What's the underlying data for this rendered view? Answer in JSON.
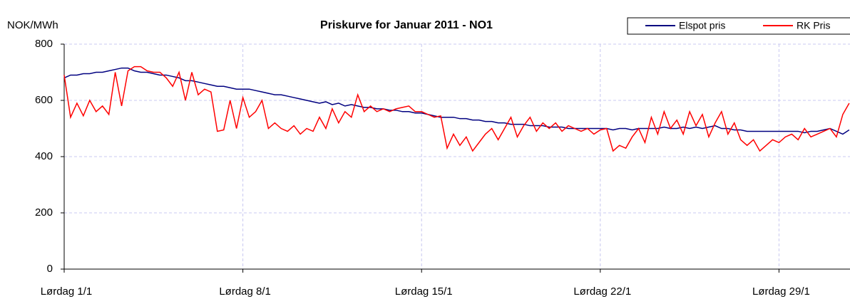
{
  "chart_data": {
    "type": "line",
    "title": "Priskurve for Januar 2011 - NO1",
    "y_label": "NOK/MWh",
    "categories": [
      "Lørdag 1/1",
      null,
      null,
      null,
      null,
      null,
      null,
      null,
      null,
      null,
      null,
      null,
      null,
      null,
      null,
      null,
      null,
      null,
      null,
      null,
      null,
      null,
      null,
      null,
      null,
      null,
      null,
      null,
      "Lørdag 8/1",
      null,
      null,
      null,
      null,
      null,
      null,
      null,
      null,
      null,
      null,
      null,
      null,
      null,
      null,
      null,
      null,
      null,
      null,
      null,
      null,
      null,
      null,
      null,
      null,
      null,
      null,
      null,
      "Lørdag 15/1",
      null,
      null,
      null,
      null,
      null,
      null,
      null,
      null,
      null,
      null,
      null,
      null,
      null,
      null,
      null,
      null,
      null,
      null,
      null,
      null,
      null,
      null,
      null,
      null,
      null,
      null,
      null,
      "Lørdag 22/1",
      null,
      null,
      null,
      null,
      null,
      null,
      null,
      null,
      null,
      null,
      null,
      null,
      null,
      null,
      null,
      null,
      null,
      null,
      null,
      null,
      null,
      null,
      null,
      null,
      null,
      null,
      null,
      "Lørdag 29/1",
      null,
      null,
      null,
      null,
      null,
      null,
      null,
      null,
      null,
      null,
      null
    ],
    "series": [
      {
        "name": "Elspot pris",
        "color": "#000080",
        "values": [
          680,
          690,
          690,
          695,
          695,
          700,
          700,
          705,
          710,
          715,
          715,
          705,
          700,
          700,
          695,
          690,
          690,
          685,
          680,
          670,
          670,
          665,
          660,
          655,
          650,
          650,
          645,
          640,
          640,
          640,
          635,
          630,
          625,
          620,
          620,
          615,
          610,
          605,
          600,
          595,
          590,
          595,
          585,
          590,
          580,
          585,
          580,
          575,
          575,
          570,
          570,
          565,
          565,
          560,
          560,
          555,
          555,
          550,
          545,
          540,
          540,
          540,
          535,
          535,
          530,
          530,
          525,
          525,
          520,
          520,
          515,
          515,
          515,
          510,
          510,
          510,
          505,
          505,
          505,
          500,
          500,
          500,
          500,
          500,
          500,
          500,
          495,
          500,
          500,
          495,
          500,
          500,
          500,
          500,
          505,
          500,
          500,
          505,
          500,
          505,
          500,
          505,
          510,
          500,
          500,
          495,
          495,
          490,
          490,
          490,
          490,
          490,
          490,
          490,
          490,
          490,
          485,
          490,
          490,
          495,
          500,
          490,
          480,
          495
        ]
      },
      {
        "name": "RK Pris",
        "color": "#ff0000",
        "values": [
          690,
          540,
          590,
          545,
          600,
          560,
          580,
          550,
          700,
          580,
          705,
          720,
          720,
          705,
          700,
          700,
          680,
          650,
          700,
          600,
          700,
          620,
          640,
          630,
          490,
          495,
          600,
          500,
          610,
          540,
          560,
          600,
          500,
          520,
          500,
          490,
          510,
          480,
          500,
          490,
          540,
          500,
          570,
          520,
          560,
          540,
          620,
          560,
          580,
          560,
          570,
          560,
          570,
          575,
          580,
          560,
          560,
          550,
          540,
          545,
          430,
          480,
          440,
          470,
          420,
          450,
          480,
          500,
          460,
          500,
          540,
          470,
          510,
          540,
          490,
          520,
          500,
          520,
          490,
          510,
          500,
          490,
          500,
          480,
          495,
          500,
          420,
          440,
          430,
          470,
          500,
          450,
          540,
          480,
          560,
          500,
          530,
          480,
          560,
          510,
          550,
          470,
          520,
          560,
          480,
          520,
          460,
          440,
          460,
          420,
          440,
          460,
          450,
          470,
          480,
          460,
          500,
          470,
          480,
          490,
          500,
          470,
          550,
          590
        ]
      }
    ],
    "ylim": [
      0,
      800
    ],
    "yticks": [
      0,
      200,
      400,
      600,
      800
    ],
    "grid": true,
    "legend": "top-right"
  }
}
